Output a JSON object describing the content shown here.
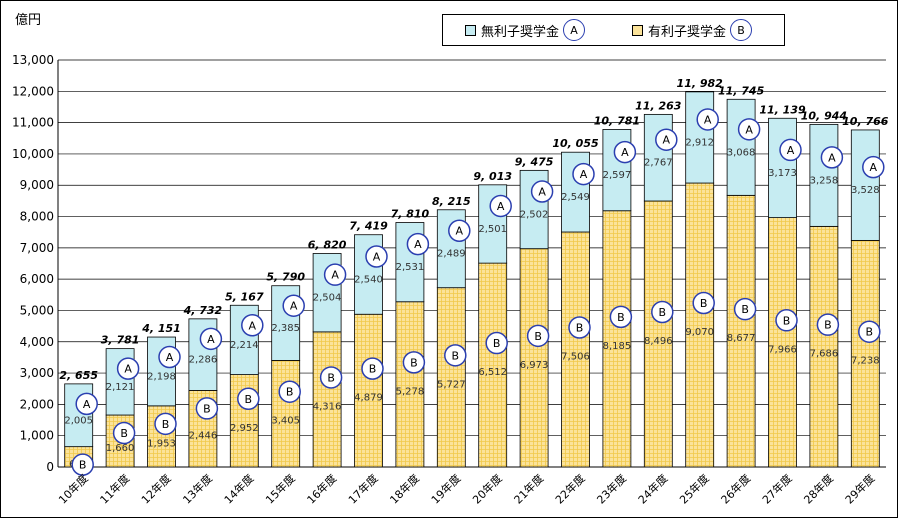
{
  "unit_label": "億円",
  "legend": [
    {
      "label": "無利子奨学金",
      "marker": "A",
      "color": "#c6ecf2"
    },
    {
      "label": "有利子奨学金",
      "marker": "B",
      "color": "#fbe39a"
    }
  ],
  "chart_data": {
    "type": "bar",
    "stacked": true,
    "title": "",
    "xlabel": "",
    "ylabel": "億円",
    "ylim": [
      0,
      13000
    ],
    "yticks": [
      "0",
      "1,000",
      "2,000",
      "3,000",
      "4,000",
      "5,000",
      "6,000",
      "7,000",
      "8,000",
      "9,000",
      "10,000",
      "11,000",
      "12,000",
      "13,000"
    ],
    "categories": [
      "10年度",
      "11年度",
      "12年度",
      "13年度",
      "14年度",
      "15年度",
      "16年度",
      "17年度",
      "18年度",
      "19年度",
      "20年度",
      "21年度",
      "22年度",
      "23年度",
      "24年度",
      "25年度",
      "26年度",
      "27年度",
      "28年度",
      "29年度"
    ],
    "series": [
      {
        "name": "有利子奨学金",
        "marker": "B",
        "color": "#fbe39a",
        "values": [
          650,
          1660,
          1953,
          2446,
          2952,
          3405,
          4316,
          4879,
          5278,
          5727,
          6512,
          6973,
          7506,
          8185,
          8496,
          9070,
          8677,
          7966,
          7686,
          7238
        ],
        "labels": [
          "650",
          "1,660",
          "1,953",
          "2,446",
          "2,952",
          "3,405",
          "4,316",
          "4,879",
          "5,278",
          "5,727",
          "6,512",
          "6,973",
          "7,506",
          "8,185",
          "8,496",
          "9,070",
          "8,677",
          "7,966",
          "7,686",
          "7,238"
        ]
      },
      {
        "name": "無利子奨学金",
        "marker": "A",
        "color": "#c6ecf2",
        "values": [
          2005,
          2121,
          2198,
          2286,
          2214,
          2385,
          2504,
          2540,
          2531,
          2489,
          2501,
          2502,
          2549,
          2597,
          2767,
          2912,
          3068,
          3173,
          3258,
          3528
        ],
        "labels": [
          "2,005",
          "2,121",
          "2,198",
          "2,286",
          "2,214",
          "2,385",
          "2,504",
          "2,540",
          "2,531",
          "2,489",
          "2,501",
          "2,502",
          "2,549",
          "2,597",
          "2,767",
          "2,912",
          "3,068",
          "3,173",
          "3,258",
          "3,528"
        ]
      }
    ],
    "totals": [
      2655,
      3781,
      4151,
      4732,
      5167,
      5790,
      6820,
      7419,
      7810,
      8215,
      9013,
      9475,
      10055,
      10781,
      11263,
      11982,
      11745,
      11139,
      10944,
      10766
    ],
    "total_labels": [
      "2, 655",
      "3, 781",
      "4, 151",
      "4, 732",
      "5, 167",
      "5, 790",
      "6, 820",
      "7, 419",
      "7, 810",
      "8, 215",
      "9, 013",
      "9, 475",
      "10, 055",
      "10, 781",
      "11, 263",
      "11, 982",
      "11, 745",
      "11, 139",
      "10, 944",
      "10, 766"
    ],
    "grid": true,
    "legend_position": "top-right"
  }
}
